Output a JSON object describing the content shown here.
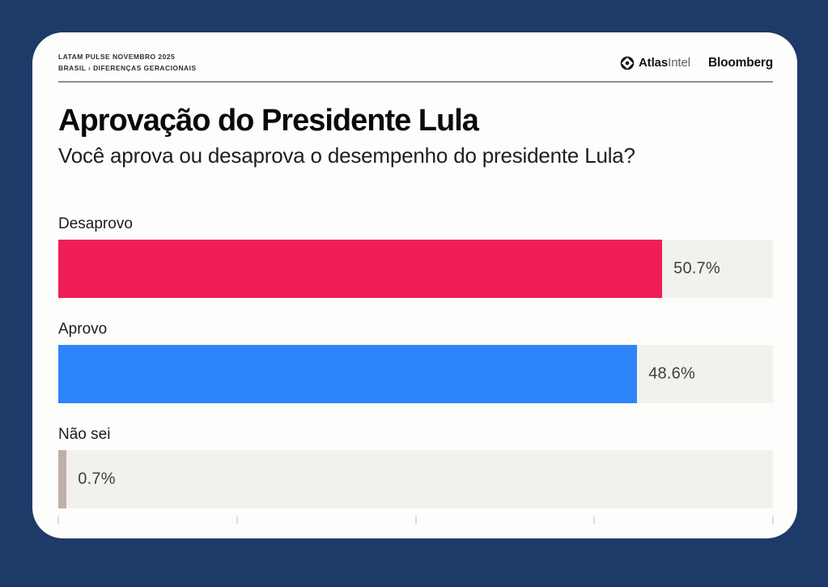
{
  "page": {
    "background_color": "#1e3a68",
    "card_color": "#fdfdfc"
  },
  "header": {
    "kicker_line1": "LATAM PULSE NOVEMBRO 2025",
    "kicker_line2": "BRASIL › DIFERENÇAS GERACIONAIS",
    "atlas_brand_bold": "Atlas",
    "atlas_brand_light": "Intel",
    "bloomberg_brand": "Bloomberg",
    "atlas_icon": "atlasintel-ring-diamond-logo"
  },
  "title": "Aprovação do Presidente Lula",
  "subtitle": "Você aprova ou desaprova o desempenho do presidente Lula?",
  "chart_data": {
    "type": "bar",
    "orientation": "horizontal",
    "title": "Aprovação do Presidente Lula",
    "subtitle": "Você aprova ou desaprova o desempenho do presidente Lula?",
    "categories": [
      "Desaprovo",
      "Aprovo",
      "Não sei"
    ],
    "values": [
      50.7,
      48.6,
      0.7
    ],
    "value_labels": [
      "50.7%",
      "48.6%",
      "0.7%"
    ],
    "bar_colors": [
      "#ef1e56",
      "#2e85f9",
      "#bfafa6"
    ],
    "track_color": "#f2f1ee",
    "xlim": [
      0,
      60
    ],
    "ticks_percent": [
      0,
      15,
      30,
      45,
      60
    ],
    "grid": false,
    "legend": false,
    "value_label_position": "right-of-bar"
  }
}
